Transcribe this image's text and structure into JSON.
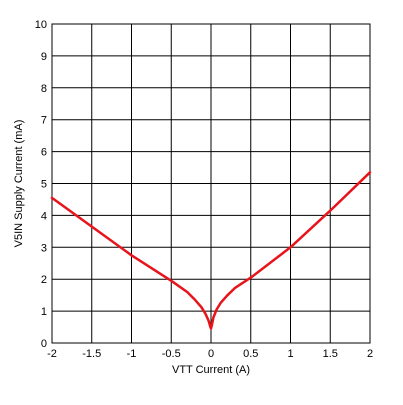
{
  "chart_data": {
    "type": "line",
    "title": "",
    "xlabel": "VTT Current (A)",
    "ylabel": "V5IN Supply Current (mA)",
    "xlim": [
      -2,
      2
    ],
    "ylim": [
      0,
      10
    ],
    "x_ticks": [
      -2,
      -1.5,
      -1,
      -0.5,
      0,
      0.5,
      1,
      1.5,
      2
    ],
    "y_ticks": [
      0,
      1,
      2,
      3,
      4,
      5,
      6,
      7,
      8,
      9,
      10
    ],
    "x_tick_labels": [
      "-2",
      "-1.5",
      "-1",
      "-0.5",
      "0",
      "0.5",
      "1",
      "1.5",
      "2"
    ],
    "y_tick_labels": [
      "0",
      "1",
      "2",
      "3",
      "4",
      "5",
      "6",
      "7",
      "8",
      "9",
      "10"
    ],
    "grid": true,
    "line_color": "#e8141c",
    "series": [
      {
        "x": [
          -2,
          -1.5,
          -1,
          -0.5,
          -0.3,
          -0.2,
          -0.12,
          -0.07,
          -0.03,
          -0.01,
          0,
          0.01,
          0.03,
          0.07,
          0.12,
          0.2,
          0.3,
          0.5,
          1,
          1.5,
          2
        ],
        "y": [
          4.55,
          3.65,
          2.75,
          1.95,
          1.6,
          1.35,
          1.12,
          0.92,
          0.7,
          0.52,
          0.45,
          0.55,
          0.8,
          1.05,
          1.25,
          1.48,
          1.72,
          2.05,
          3.0,
          4.15,
          5.35
        ]
      }
    ]
  }
}
